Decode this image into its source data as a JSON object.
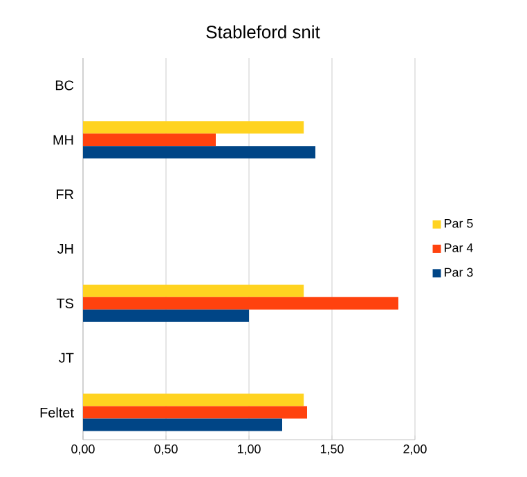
{
  "chart_data": {
    "type": "bar",
    "orientation": "horizontal",
    "title": "Stableford snit",
    "categories": [
      "BC",
      "MH",
      "FR",
      "JH",
      "TS",
      "JT",
      "Feltet"
    ],
    "series": [
      {
        "name": "Par 5",
        "color": "#ffd320",
        "values": [
          null,
          1.33,
          null,
          null,
          1.33,
          null,
          1.33
        ]
      },
      {
        "name": "Par 4",
        "color": "#ff420e",
        "values": [
          null,
          0.8,
          null,
          null,
          1.9,
          null,
          1.35
        ]
      },
      {
        "name": "Par 3",
        "color": "#004586",
        "values": [
          null,
          1.4,
          null,
          null,
          1.0,
          null,
          1.2
        ]
      }
    ],
    "xlim": [
      0,
      2
    ],
    "xticks": [
      {
        "value": 0,
        "label": "0,00"
      },
      {
        "value": 0.5,
        "label": "0,50"
      },
      {
        "value": 1,
        "label": "1,00"
      },
      {
        "value": 1.5,
        "label": "1,50"
      },
      {
        "value": 2,
        "label": "2,00"
      }
    ],
    "grid": "x",
    "legend": "right"
  }
}
